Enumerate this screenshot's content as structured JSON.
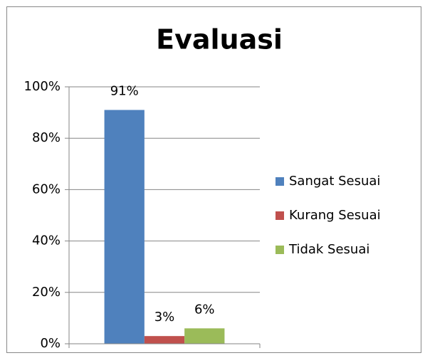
{
  "chart_data": {
    "type": "bar",
    "title": "Evaluasi",
    "categories": [
      null
    ],
    "series": [
      {
        "name": "Sangat Sesuai",
        "color": "#4f81bd",
        "values": [
          91
        ],
        "value_labels": [
          "91%"
        ]
      },
      {
        "name": "Kurang Sesuai",
        "color": "#c0504d",
        "values": [
          3
        ],
        "value_labels": [
          "3%"
        ]
      },
      {
        "name": "Tidak Sesuai",
        "color": "#9bbb59",
        "values": [
          6
        ],
        "value_labels": [
          "6%"
        ]
      }
    ],
    "ylim": [
      0,
      100
    ],
    "yticks": [
      {
        "value": 0,
        "label": "0%"
      },
      {
        "value": 20,
        "label": "20%"
      },
      {
        "value": 40,
        "label": "40%"
      },
      {
        "value": 60,
        "label": "60%"
      },
      {
        "value": 80,
        "label": "80%"
      },
      {
        "value": 100,
        "label": "100%"
      }
    ],
    "grid": true,
    "legend": "right"
  }
}
